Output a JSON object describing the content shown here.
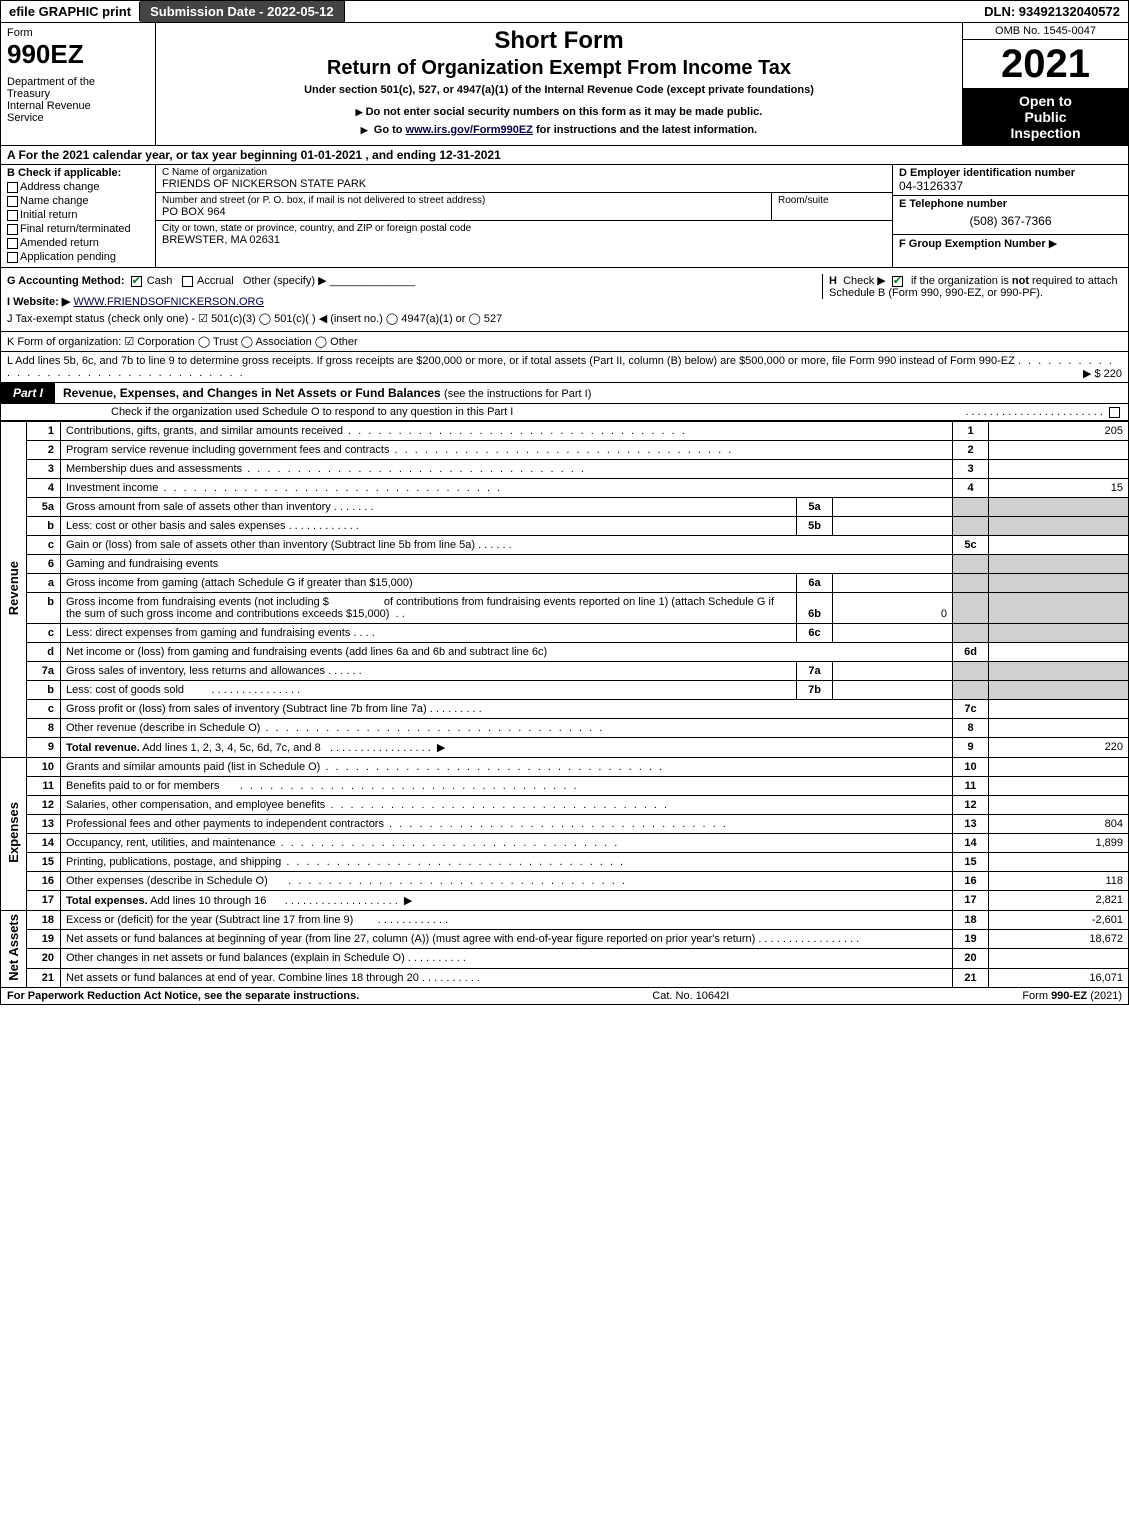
{
  "topbar": {
    "efile": "efile GRAPHIC print",
    "subdate": "Submission Date - 2022-05-12",
    "dln": "DLN: 93492132040572"
  },
  "header": {
    "form_label": "Form",
    "form_number": "990EZ",
    "dept": "Department of the Treasury\nInternal Revenue Service",
    "short_form": "Short Form",
    "return_title": "Return of Organization Exempt From Income Tax",
    "under": "Under section 501(c), 527, or 4947(a)(1) of the Internal Revenue Code (except private foundations)",
    "donot": "Do not enter social security numbers on this form as it may be made public.",
    "goto_pre": "Go to ",
    "goto_link": "www.irs.gov/Form990EZ",
    "goto_post": " for instructions and the latest information.",
    "omb": "OMB No. 1545-0047",
    "year": "2021",
    "open": "Open to Public Inspection"
  },
  "line_a": "A  For the 2021 calendar year, or tax year beginning 01-01-2021 , and ending 12-31-2021",
  "section_b": {
    "header": "B  Check if applicable:",
    "options": [
      "Address change",
      "Name change",
      "Initial return",
      "Final return/terminated",
      "Amended return",
      "Application pending"
    ]
  },
  "section_c": {
    "name_label": "C Name of organization",
    "name": "FRIENDS OF NICKERSON STATE PARK",
    "street_label": "Number and street (or P. O. box, if mail is not delivered to street address)",
    "street": "PO BOX 964",
    "room_label": "Room/suite",
    "city_label": "City or town, state or province, country, and ZIP or foreign postal code",
    "city": "BREWSTER, MA  02631"
  },
  "section_d": {
    "label": "D Employer identification number",
    "value": "04-3126337"
  },
  "section_e": {
    "label": "E Telephone number",
    "value": "(508) 367-7366"
  },
  "section_f": {
    "label": "F Group Exemption Number",
    "arrow": "▶"
  },
  "line_g": {
    "label": "G Accounting Method:",
    "cash": "Cash",
    "accrual": "Accrual",
    "other": "Other (specify) ▶"
  },
  "line_h": "H  Check ▶  ☑  if the organization is not required to attach Schedule B (Form 990, 990-EZ, or 990-PF).",
  "line_i": {
    "label": "I Website: ▶",
    "value": "WWW.FRIENDSOFNICKERSON.ORG"
  },
  "line_j": "J Tax-exempt status (check only one) - ☑ 501(c)(3)  ◯ 501(c)(  ) ◀ (insert no.)  ◯ 4947(a)(1) or  ◯ 527",
  "line_k": "K Form of organization:  ☑ Corporation  ◯ Trust  ◯ Association  ◯ Other",
  "line_l": {
    "text": "L Add lines 5b, 6c, and 7b to line 9 to determine gross receipts. If gross receipts are $200,000 or more, or if total assets (Part II, column (B) below) are $500,000 or more, file Form 990 instead of Form 990-EZ",
    "value": "▶ $ 220"
  },
  "part1": {
    "tab": "Part I",
    "title": "Revenue, Expenses, and Changes in Net Assets or Fund Balances",
    "subtitle": "(see the instructions for Part I)",
    "check_line": "Check if the organization used Schedule O to respond to any question in this Part I",
    "check_val": "◯"
  },
  "sections": {
    "revenue": "Revenue",
    "expenses": "Expenses",
    "netassets": "Net Assets"
  },
  "rows": {
    "r1": {
      "n": "1",
      "d": "Contributions, gifts, grants, and similar amounts received",
      "rn": "1",
      "rv": "205"
    },
    "r2": {
      "n": "2",
      "d": "Program service revenue including government fees and contracts",
      "rn": "2",
      "rv": ""
    },
    "r3": {
      "n": "3",
      "d": "Membership dues and assessments",
      "rn": "3",
      "rv": ""
    },
    "r4": {
      "n": "4",
      "d": "Investment income",
      "rn": "4",
      "rv": "15"
    },
    "r5a": {
      "n": "5a",
      "d": "Gross amount from sale of assets other than inventory",
      "in": "5a",
      "iv": ""
    },
    "r5b": {
      "n": "b",
      "d": "Less: cost or other basis and sales expenses",
      "in": "5b",
      "iv": ""
    },
    "r5c": {
      "n": "c",
      "d": "Gain or (loss) from sale of assets other than inventory (Subtract line 5b from line 5a)",
      "rn": "5c",
      "rv": ""
    },
    "r6": {
      "n": "6",
      "d": "Gaming and fundraising events"
    },
    "r6a": {
      "n": "a",
      "d": "Gross income from gaming (attach Schedule G if greater than $15,000)",
      "in": "6a",
      "iv": ""
    },
    "r6b": {
      "n": "b",
      "d1": "Gross income from fundraising events (not including $",
      "d2": "of contributions from fundraising events reported on line 1) (attach Schedule G if the sum of such gross income and contributions exceeds $15,000)",
      "in": "6b",
      "iv": "0"
    },
    "r6c": {
      "n": "c",
      "d": "Less: direct expenses from gaming and fundraising events",
      "in": "6c",
      "iv": ""
    },
    "r6d": {
      "n": "d",
      "d": "Net income or (loss) from gaming and fundraising events (add lines 6a and 6b and subtract line 6c)",
      "rn": "6d",
      "rv": ""
    },
    "r7a": {
      "n": "7a",
      "d": "Gross sales of inventory, less returns and allowances",
      "in": "7a",
      "iv": ""
    },
    "r7b": {
      "n": "b",
      "d": "Less: cost of goods sold",
      "in": "7b",
      "iv": ""
    },
    "r7c": {
      "n": "c",
      "d": "Gross profit or (loss) from sales of inventory (Subtract line 7b from line 7a)",
      "rn": "7c",
      "rv": ""
    },
    "r8": {
      "n": "8",
      "d": "Other revenue (describe in Schedule O)",
      "rn": "8",
      "rv": ""
    },
    "r9": {
      "n": "9",
      "d": "Total revenue. Add lines 1, 2, 3, 4, 5c, 6d, 7c, and 8",
      "rn": "9",
      "rv": "220"
    },
    "r10": {
      "n": "10",
      "d": "Grants and similar amounts paid (list in Schedule O)",
      "rn": "10",
      "rv": ""
    },
    "r11": {
      "n": "11",
      "d": "Benefits paid to or for members",
      "rn": "11",
      "rv": ""
    },
    "r12": {
      "n": "12",
      "d": "Salaries, other compensation, and employee benefits",
      "rn": "12",
      "rv": ""
    },
    "r13": {
      "n": "13",
      "d": "Professional fees and other payments to independent contractors",
      "rn": "13",
      "rv": "804"
    },
    "r14": {
      "n": "14",
      "d": "Occupancy, rent, utilities, and maintenance",
      "rn": "14",
      "rv": "1,899"
    },
    "r15": {
      "n": "15",
      "d": "Printing, publications, postage, and shipping",
      "rn": "15",
      "rv": ""
    },
    "r16": {
      "n": "16",
      "d": "Other expenses (describe in Schedule O)",
      "rn": "16",
      "rv": "118"
    },
    "r17": {
      "n": "17",
      "d": "Total expenses. Add lines 10 through 16",
      "rn": "17",
      "rv": "2,821"
    },
    "r18": {
      "n": "18",
      "d": "Excess or (deficit) for the year (Subtract line 17 from line 9)",
      "rn": "18",
      "rv": "-2,601"
    },
    "r19": {
      "n": "19",
      "d": "Net assets or fund balances at beginning of year (from line 27, column (A)) (must agree with end-of-year figure reported on prior year's return)",
      "rn": "19",
      "rv": "18,672"
    },
    "r20": {
      "n": "20",
      "d": "Other changes in net assets or fund balances (explain in Schedule O)",
      "rn": "20",
      "rv": ""
    },
    "r21": {
      "n": "21",
      "d": "Net assets or fund balances at end of year. Combine lines 18 through 20",
      "rn": "21",
      "rv": "16,071"
    }
  },
  "footer": {
    "left": "For Paperwork Reduction Act Notice, see the separate instructions.",
    "mid": "Cat. No. 10642I",
    "right": "Form 990-EZ (2021)"
  },
  "colors": {
    "black": "#000000",
    "darkgrey": "#444444",
    "lightgrey": "#d0d0d0",
    "link": "#000044",
    "check_green": "#0a7a2a"
  }
}
